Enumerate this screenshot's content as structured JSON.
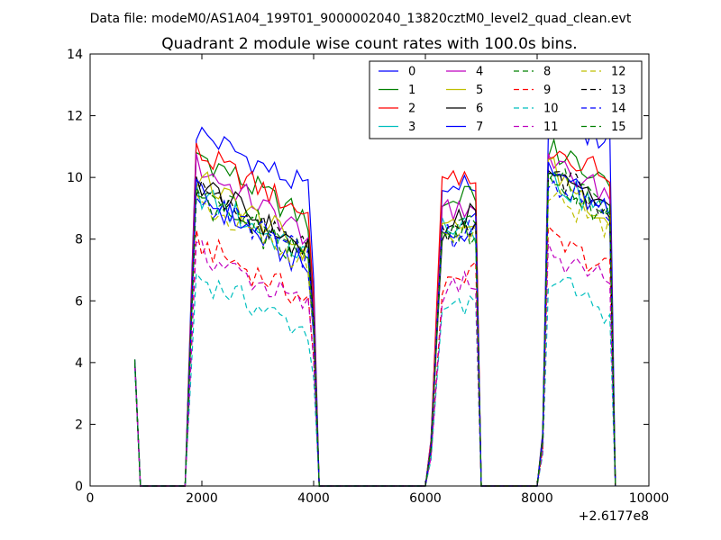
{
  "chart_data": {
    "type": "line",
    "suptitle": "Data file: modeM0/AS1A04_199T01_9000002040_13820cztM0_level2_quad_clean.evt",
    "title": "Quadrant 2 module wise count rates with 100.0s bins.",
    "xlabel": "",
    "ylabel": "",
    "x_offset_label": "+2.6177e8",
    "xlim": [
      0,
      10000
    ],
    "ylim": [
      0,
      14
    ],
    "xticks": [
      0,
      2000,
      4000,
      6000,
      8000,
      10000
    ],
    "yticks": [
      0,
      2,
      4,
      6,
      8,
      10,
      12,
      14
    ],
    "grid": false,
    "legend_position": "top-right",
    "legend_columns": 4,
    "segments": [
      {
        "x_start": 800,
        "x_end": 4000,
        "plateau_start": 1900,
        "plateau_end": 3900
      },
      {
        "x_start": 6100,
        "x_end": 6900,
        "plateau_start": 6300,
        "plateau_end": 6900
      },
      {
        "x_start": 8100,
        "x_end": 9300,
        "plateau_start": 8200,
        "plateau_end": 9300
      }
    ],
    "zero_gaps": [
      [
        900,
        1700
      ],
      [
        4100,
        6000
      ],
      [
        7000,
        8000
      ]
    ],
    "series": [
      {
        "name": "0",
        "color": "#0000ff",
        "style": "solid",
        "start_value": 4.1,
        "level_seg1": [
          11.5,
          9.6
        ],
        "level_seg2": [
          10.0,
          9.5
        ],
        "level_seg3": [
          11.6,
          11.3
        ]
      },
      {
        "name": "1",
        "color": "#008000",
        "style": "solid",
        "start_value": 4.1,
        "level_seg1": [
          10.8,
          8.6
        ],
        "level_seg2": [
          9.0,
          9.5
        ],
        "level_seg3": [
          11.0,
          10.0
        ]
      },
      {
        "name": "2",
        "color": "#ff0000",
        "style": "solid",
        "start_value": 4.0,
        "level_seg1": [
          10.8,
          8.8
        ],
        "level_seg2": [
          9.8,
          9.8
        ],
        "level_seg3": [
          11.0,
          10.2
        ]
      },
      {
        "name": "3",
        "color": "#00bfbf",
        "style": "solid",
        "start_value": 4.0,
        "level_seg1": [
          9.5,
          7.4
        ],
        "level_seg2": [
          8.7,
          8.2
        ],
        "level_seg3": [
          10.0,
          8.8
        ]
      },
      {
        "name": "4",
        "color": "#bf00bf",
        "style": "solid",
        "start_value": 4.0,
        "level_seg1": [
          10.4,
          8.1
        ],
        "level_seg2": [
          9.0,
          9.2
        ],
        "level_seg3": [
          10.5,
          9.4
        ]
      },
      {
        "name": "5",
        "color": "#bfbf00",
        "style": "solid",
        "start_value": 4.0,
        "level_seg1": [
          10.0,
          7.6
        ],
        "level_seg2": [
          8.3,
          8.5
        ],
        "level_seg3": [
          10.4,
          8.6
        ]
      },
      {
        "name": "6",
        "color": "#000000",
        "style": "solid",
        "start_value": 4.0,
        "level_seg1": [
          9.9,
          7.6
        ],
        "level_seg2": [
          8.3,
          8.8
        ],
        "level_seg3": [
          10.6,
          9.0
        ]
      },
      {
        "name": "7",
        "color": "#0000ff",
        "style": "solid",
        "start_value": 4.0,
        "level_seg1": [
          9.5,
          7.0
        ],
        "level_seg2": [
          8.0,
          8.4
        ],
        "level_seg3": [
          10.4,
          8.7
        ]
      },
      {
        "name": "8",
        "color": "#008000",
        "style": "dashed",
        "start_value": 4.0,
        "level_seg1": [
          9.6,
          7.6
        ],
        "level_seg2": [
          8.0,
          8.5
        ],
        "level_seg3": [
          10.2,
          8.8
        ]
      },
      {
        "name": "9",
        "color": "#ff0000",
        "style": "dashed",
        "start_value": 3.9,
        "level_seg1": [
          7.9,
          6.0
        ],
        "level_seg2": [
          6.4,
          7.0
        ],
        "level_seg3": [
          8.0,
          7.0
        ]
      },
      {
        "name": "10",
        "color": "#00bfbf",
        "style": "dashed",
        "start_value": 3.8,
        "level_seg1": [
          6.8,
          5.0
        ],
        "level_seg2": [
          5.6,
          5.8
        ],
        "level_seg3": [
          6.8,
          5.6
        ]
      },
      {
        "name": "11",
        "color": "#bf00bf",
        "style": "dashed",
        "start_value": 3.9,
        "level_seg1": [
          7.6,
          5.8
        ],
        "level_seg2": [
          6.2,
          6.8
        ],
        "level_seg3": [
          7.6,
          6.6
        ]
      },
      {
        "name": "12",
        "color": "#bfbf00",
        "style": "dashed",
        "start_value": 4.0,
        "level_seg1": [
          9.2,
          7.2
        ],
        "level_seg2": [
          7.8,
          8.2
        ],
        "level_seg3": [
          9.4,
          8.4
        ]
      },
      {
        "name": "13",
        "color": "#000000",
        "style": "dashed",
        "start_value": 4.0,
        "level_seg1": [
          9.6,
          7.6
        ],
        "level_seg2": [
          8.2,
          8.6
        ],
        "level_seg3": [
          10.2,
          9.0
        ]
      },
      {
        "name": "14",
        "color": "#0000ff",
        "style": "dashed",
        "start_value": 4.0,
        "level_seg1": [
          9.4,
          7.4
        ],
        "level_seg2": [
          8.0,
          8.4
        ],
        "level_seg3": [
          10.0,
          8.8
        ]
      },
      {
        "name": "15",
        "color": "#008000",
        "style": "dashed",
        "start_value": 4.0,
        "level_seg1": [
          9.3,
          7.3
        ],
        "level_seg2": [
          7.9,
          8.3
        ],
        "level_seg3": [
          9.9,
          8.7
        ]
      }
    ]
  }
}
